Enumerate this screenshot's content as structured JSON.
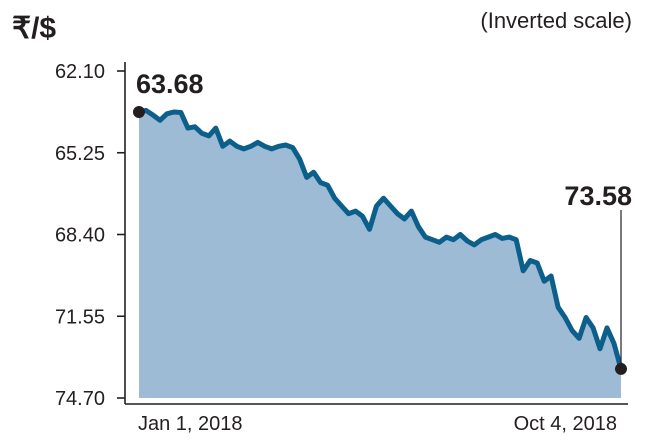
{
  "chart_data": {
    "type": "area",
    "title": "₹/$",
    "subtitle": "(Inverted scale)",
    "y_inverted": true,
    "ylim": [
      62.1,
      74.7
    ],
    "y_ticks": [
      "62.10",
      "65.25",
      "68.40",
      "71.55",
      "74.70"
    ],
    "x_tick_labels": [
      "Jan 1, 2018",
      "Oct 4, 2018"
    ],
    "x_range": [
      "2018-01-01",
      "2018-10-04"
    ],
    "annotations": [
      {
        "x": "2018-01-01",
        "y": 63.68,
        "label": "63.68"
      },
      {
        "x": "2018-10-04",
        "y": 73.58,
        "label": "73.58"
      }
    ],
    "series": [
      {
        "x": [
          "2018-01-01",
          "2018-01-05",
          "2018-01-09",
          "2018-01-13",
          "2018-01-17",
          "2018-01-21",
          "2018-01-25",
          "2018-01-29",
          "2018-02-02",
          "2018-02-06",
          "2018-02-10",
          "2018-02-14",
          "2018-02-18",
          "2018-02-22",
          "2018-02-26",
          "2018-03-02",
          "2018-03-06",
          "2018-03-10",
          "2018-03-14",
          "2018-03-18",
          "2018-03-22",
          "2018-03-26",
          "2018-03-30",
          "2018-04-03",
          "2018-04-07",
          "2018-04-11",
          "2018-04-15",
          "2018-04-19",
          "2018-04-23",
          "2018-04-27",
          "2018-05-01",
          "2018-05-05",
          "2018-05-09",
          "2018-05-13",
          "2018-05-17",
          "2018-05-21",
          "2018-05-25",
          "2018-05-29",
          "2018-06-02",
          "2018-06-06",
          "2018-06-10",
          "2018-06-14",
          "2018-06-18",
          "2018-06-22",
          "2018-06-26",
          "2018-06-30",
          "2018-07-04",
          "2018-07-08",
          "2018-07-12",
          "2018-07-16",
          "2018-07-20",
          "2018-07-24",
          "2018-07-28",
          "2018-08-01",
          "2018-08-05",
          "2018-08-09",
          "2018-08-13",
          "2018-08-17",
          "2018-08-21",
          "2018-08-25",
          "2018-08-29",
          "2018-09-02",
          "2018-09-06",
          "2018-09-10",
          "2018-09-14",
          "2018-09-18",
          "2018-09-22",
          "2018-09-26",
          "2018-09-30",
          "2018-10-04"
        ],
        "values": [
          63.68,
          63.62,
          63.8,
          64.0,
          63.75,
          63.68,
          63.7,
          64.3,
          64.25,
          64.5,
          64.6,
          64.3,
          65.0,
          64.8,
          65.0,
          65.1,
          65.0,
          64.85,
          65.0,
          65.1,
          65.0,
          64.95,
          65.05,
          65.5,
          66.2,
          66.0,
          66.4,
          66.5,
          67.0,
          67.3,
          67.6,
          67.5,
          67.7,
          68.2,
          67.3,
          67.0,
          67.3,
          67.6,
          67.8,
          67.5,
          68.1,
          68.5,
          68.6,
          68.7,
          68.5,
          68.6,
          68.4,
          68.65,
          68.8,
          68.6,
          68.5,
          68.4,
          68.55,
          68.5,
          68.6,
          69.8,
          69.4,
          69.5,
          70.2,
          70.0,
          71.2,
          71.6,
          72.1,
          72.4,
          71.6,
          72.0,
          72.8,
          72.0,
          72.6,
          73.58
        ]
      }
    ]
  }
}
